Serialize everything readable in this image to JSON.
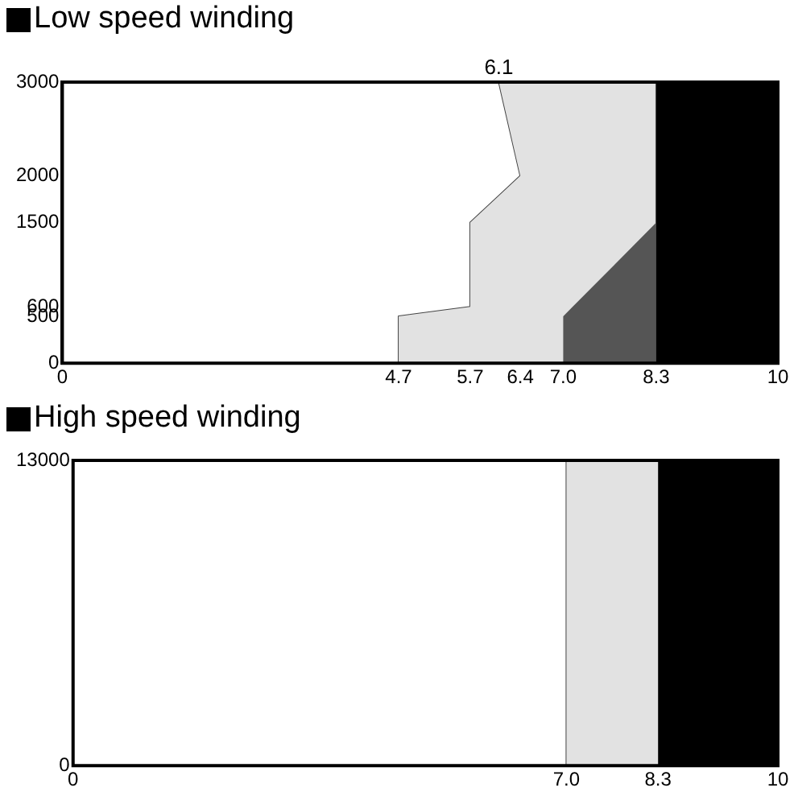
{
  "chart_data": [
    {
      "type": "area",
      "title": "Low speed winding",
      "orientation": "horizontal",
      "stacked": true,
      "xlim": [
        0,
        10
      ],
      "xticks": [
        0,
        4.7,
        5.7,
        6.4,
        {
          "value": 7,
          "label": "7.0"
        },
        8.3,
        10
      ],
      "ylim": [
        0,
        3000
      ],
      "yticks": [
        0,
        500,
        600,
        1500,
        2000,
        3000
      ],
      "legend": false,
      "annotations": [
        {
          "text": "6.1",
          "x": 6.1,
          "y": 3000
        }
      ],
      "series": [
        {
          "color": "#ffffff",
          "x": [
            0,
            500,
            600,
            1500,
            2000,
            3000
          ],
          "values": [
            4.7,
            4.7,
            5.7,
            5.7,
            6.4,
            6.1
          ]
        },
        {
          "color": "#e2e2e2",
          "x": [
            0,
            500,
            600,
            1500,
            2000,
            3000
          ],
          "values": [
            2.3,
            2.3,
            1.43,
            2.6,
            1.9,
            2.2
          ]
        },
        {
          "color": "#555555",
          "x": [
            0,
            500,
            600,
            1500,
            2000,
            3000
          ],
          "values": [
            1.3,
            1.3,
            1.17,
            0,
            0,
            0
          ]
        },
        {
          "color": "#000000",
          "x": [
            0,
            500,
            600,
            1500,
            2000,
            3000
          ],
          "values": [
            1.7,
            1.7,
            1.7,
            1.7,
            1.7,
            1.7
          ]
        }
      ]
    },
    {
      "type": "area",
      "title": "High speed winding",
      "orientation": "horizontal",
      "stacked": true,
      "xlim": [
        0,
        10
      ],
      "xticks": [
        0,
        {
          "value": 7,
          "label": "7.0"
        },
        8.3,
        10
      ],
      "ylim": [
        0,
        13000
      ],
      "yticks": [
        0,
        13000
      ],
      "legend": false,
      "series": [
        {
          "color": "#ffffff",
          "x": [
            0,
            13000
          ],
          "values": [
            7,
            7
          ]
        },
        {
          "color": "#e2e2e2",
          "x": [
            0,
            13000
          ],
          "values": [
            1.3,
            1.3
          ]
        },
        {
          "color": "#000000",
          "x": [
            0,
            13000
          ],
          "values": [
            1.7,
            1.7
          ]
        }
      ]
    }
  ]
}
